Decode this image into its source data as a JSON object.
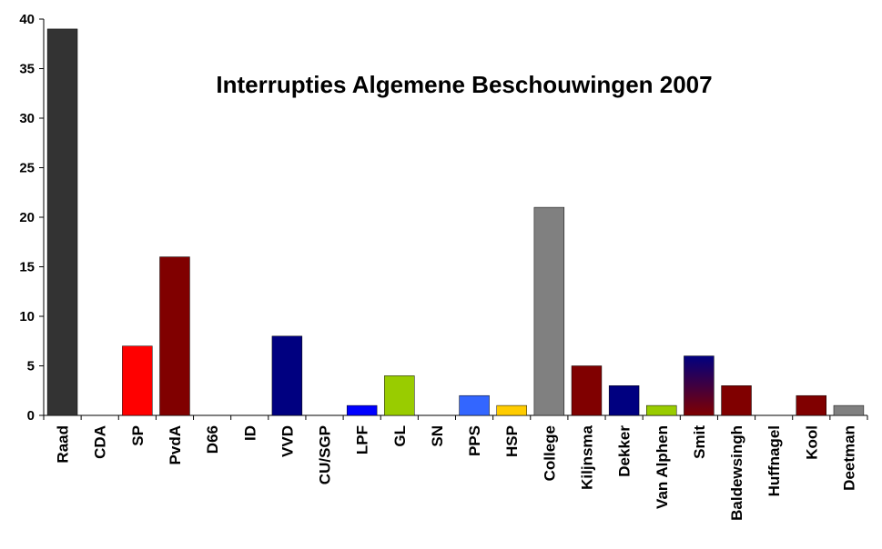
{
  "chart_data": {
    "type": "bar",
    "title": "Interrupties Algemene Beschouwingen 2007",
    "xlabel": "",
    "ylabel": "",
    "ylim": [
      0,
      40
    ],
    "yticks": [
      0,
      5,
      10,
      15,
      20,
      25,
      30,
      35,
      40
    ],
    "grid": false,
    "legend": "none",
    "categories": [
      "Raad",
      "CDA",
      "SP",
      "PvdA",
      "D66",
      "ID",
      "VVD",
      "CU/SGP",
      "LPF",
      "GL",
      "SN",
      "PPS",
      "HSP",
      "College",
      "Kiljnsma",
      "Dekker",
      "Van Alphen",
      "Smit",
      "Baldewsingh",
      "Huffnagel",
      "Kool",
      "Deetman"
    ],
    "values": [
      39,
      0,
      7,
      16,
      0,
      0,
      8,
      0,
      1,
      4,
      0,
      2,
      1,
      21,
      5,
      3,
      1,
      6,
      3,
      0,
      2,
      1
    ],
    "colors": [
      "#333333",
      "#333333",
      "#ff0000",
      "#800000",
      "#000080",
      "#000080",
      "#000080",
      "#000080",
      "#0000ff",
      "#99cc00",
      "#3366ff",
      "#3366ff",
      "#ffcc00",
      "#808080",
      "#800000",
      "#000080",
      "#99cc00",
      "gradient:#000080-#800000",
      "#800000",
      "#800000",
      "#800000",
      "#808080"
    ]
  }
}
